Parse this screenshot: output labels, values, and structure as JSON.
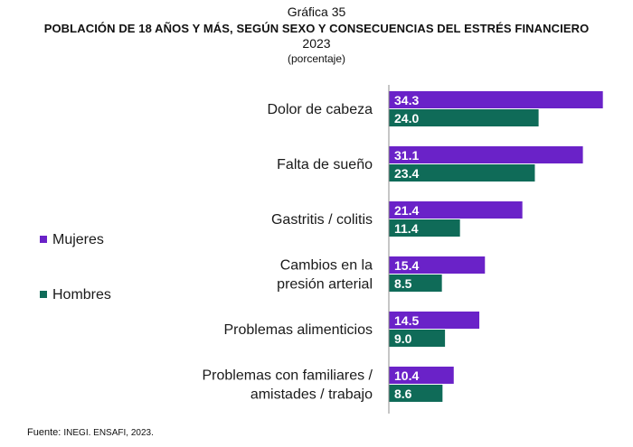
{
  "header": {
    "graph_number": "Gráfica 35",
    "title": "POBLACIÓN DE 18 AÑOS Y MÁS, SEGÚN SEXO Y CONSECUENCIAS DEL ESTRÉS FINANCIERO",
    "year": "2023",
    "subtitle": "(porcentaje)"
  },
  "source": {
    "label": "Fuente:",
    "text": "INEGI. ENSAFI, 2023."
  },
  "colors": {
    "mujeres": "#6a22c8",
    "hombres": "#0f6b58"
  },
  "chart_data": {
    "type": "bar",
    "orientation": "horizontal",
    "categories": [
      [
        "Dolor de cabeza"
      ],
      [
        "Falta de sueño"
      ],
      [
        "Gastritis / colitis"
      ],
      [
        "Cambios en la",
        "presión arterial"
      ],
      [
        "Problemas alimenticios"
      ],
      [
        "Problemas con familiares /",
        "amistades / trabajo"
      ]
    ],
    "series": [
      {
        "name": "Mujeres",
        "values": [
          34.3,
          31.1,
          21.4,
          15.4,
          14.5,
          10.4
        ]
      },
      {
        "name": "Hombres",
        "values": [
          24.0,
          23.4,
          11.4,
          8.5,
          9.0,
          8.6
        ]
      }
    ],
    "value_labels": {
      "Mujeres": [
        "34.3",
        "31.1",
        "21.4",
        "15.4",
        "14.5",
        "10.4"
      ],
      "Hombres": [
        "24.0",
        "23.4",
        "11.4",
        "8.5",
        "9.0",
        "8.6"
      ]
    },
    "xlim": [
      0,
      40
    ],
    "legend_position": "left",
    "grid": false
  }
}
